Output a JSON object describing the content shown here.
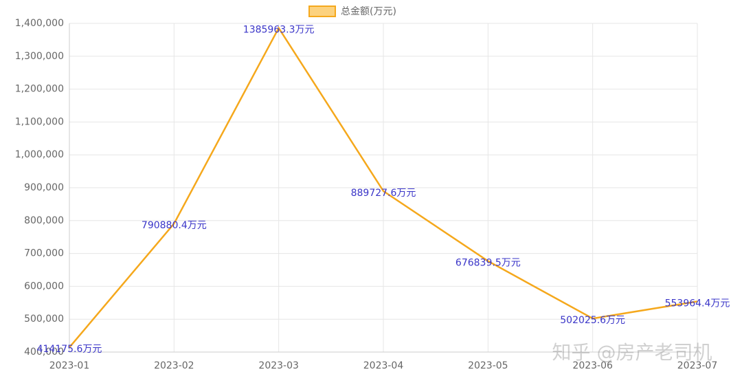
{
  "chart_data": {
    "type": "line",
    "legend_label": "总金额(万元)",
    "categories": [
      "2023-01",
      "2023-02",
      "2023-03",
      "2023-04",
      "2023-05",
      "2023-06",
      "2023-07"
    ],
    "series": [
      {
        "name": "总金额(万元)",
        "color": "#f5a81c",
        "values": [
          414175.6,
          790880.4,
          1385963.3,
          889727.6,
          676839.5,
          502025.6,
          553964.4
        ],
        "value_labels": [
          "414175.6万元",
          "790880.4万元",
          "1385963.3万元",
          "889727.6万元",
          "676839.5万元",
          "502025.6万元",
          "553964.4万元"
        ]
      }
    ],
    "ylim": [
      400000,
      1400000
    ],
    "yticks": [
      {
        "value": 400000,
        "label": "400,000"
      },
      {
        "value": 500000,
        "label": "500,000"
      },
      {
        "value": 600000,
        "label": "600,000"
      },
      {
        "value": 700000,
        "label": "700,000"
      },
      {
        "value": 800000,
        "label": "800,000"
      },
      {
        "value": 900000,
        "label": "900,000"
      },
      {
        "value": 1000000,
        "label": "1,000,000"
      },
      {
        "value": 1100000,
        "label": "1,100,000"
      },
      {
        "value": 1200000,
        "label": "1,200,000"
      },
      {
        "value": 1300000,
        "label": "1,300,000"
      },
      {
        "value": 1400000,
        "label": "1,400,000"
      }
    ],
    "grid": true,
    "watermark": "知乎 @房产老司机"
  }
}
